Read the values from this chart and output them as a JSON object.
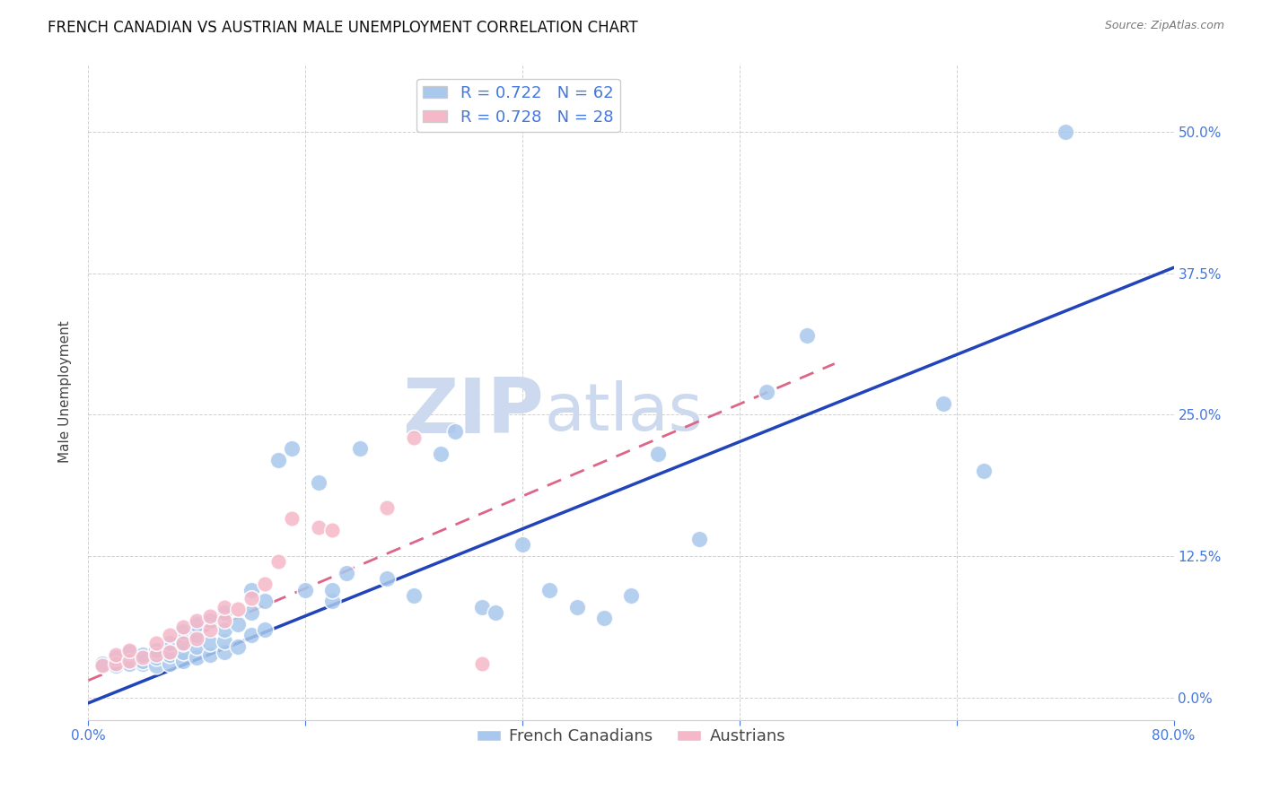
{
  "title": "FRENCH CANADIAN VS AUSTRIAN MALE UNEMPLOYMENT CORRELATION CHART",
  "source": "Source: ZipAtlas.com",
  "ylabel": "Male Unemployment",
  "xlim": [
    0.0,
    0.8
  ],
  "ylim": [
    -0.02,
    0.56
  ],
  "xticks": [
    0.0,
    0.16,
    0.32,
    0.48,
    0.64,
    0.8
  ],
  "yticks": [
    0.0,
    0.125,
    0.25,
    0.375,
    0.5
  ],
  "grid_color": "#cccccc",
  "background_color": "#ffffff",
  "french_color": "#a8c8ed",
  "austrian_color": "#f5b8c8",
  "french_line_color": "#2244bb",
  "austrian_line_color": "#dd6688",
  "french_R": "0.722",
  "french_N": "62",
  "austrian_R": "0.728",
  "austrian_N": "28",
  "french_scatter_x": [
    0.01,
    0.02,
    0.02,
    0.03,
    0.03,
    0.04,
    0.04,
    0.04,
    0.05,
    0.05,
    0.05,
    0.06,
    0.06,
    0.06,
    0.07,
    0.07,
    0.07,
    0.07,
    0.08,
    0.08,
    0.08,
    0.08,
    0.09,
    0.09,
    0.09,
    0.1,
    0.1,
    0.1,
    0.1,
    0.11,
    0.11,
    0.12,
    0.12,
    0.12,
    0.13,
    0.13,
    0.14,
    0.15,
    0.16,
    0.17,
    0.18,
    0.18,
    0.19,
    0.2,
    0.22,
    0.24,
    0.26,
    0.27,
    0.29,
    0.3,
    0.32,
    0.34,
    0.36,
    0.38,
    0.4,
    0.42,
    0.45,
    0.5,
    0.53,
    0.63,
    0.66,
    0.72
  ],
  "french_scatter_y": [
    0.03,
    0.028,
    0.035,
    0.03,
    0.04,
    0.03,
    0.032,
    0.038,
    0.028,
    0.035,
    0.042,
    0.03,
    0.038,
    0.048,
    0.032,
    0.04,
    0.048,
    0.058,
    0.035,
    0.045,
    0.055,
    0.065,
    0.038,
    0.048,
    0.068,
    0.04,
    0.05,
    0.06,
    0.075,
    0.045,
    0.065,
    0.055,
    0.075,
    0.095,
    0.06,
    0.085,
    0.21,
    0.22,
    0.095,
    0.19,
    0.085,
    0.095,
    0.11,
    0.22,
    0.105,
    0.09,
    0.215,
    0.235,
    0.08,
    0.075,
    0.135,
    0.095,
    0.08,
    0.07,
    0.09,
    0.215,
    0.14,
    0.27,
    0.32,
    0.26,
    0.2,
    0.5
  ],
  "austrian_scatter_x": [
    0.01,
    0.02,
    0.02,
    0.03,
    0.03,
    0.04,
    0.05,
    0.05,
    0.06,
    0.06,
    0.07,
    0.07,
    0.08,
    0.08,
    0.09,
    0.09,
    0.1,
    0.1,
    0.11,
    0.12,
    0.13,
    0.14,
    0.15,
    0.17,
    0.18,
    0.22,
    0.24,
    0.29
  ],
  "austrian_scatter_y": [
    0.028,
    0.03,
    0.038,
    0.032,
    0.042,
    0.035,
    0.038,
    0.048,
    0.04,
    0.055,
    0.048,
    0.062,
    0.052,
    0.068,
    0.06,
    0.072,
    0.068,
    0.08,
    0.078,
    0.088,
    0.1,
    0.12,
    0.158,
    0.15,
    0.148,
    0.168,
    0.23,
    0.03
  ],
  "french_line_x": [
    0.0,
    0.8
  ],
  "french_line_y": [
    -0.005,
    0.38
  ],
  "austrian_line_x": [
    0.0,
    0.55
  ],
  "austrian_line_y": [
    0.015,
    0.295
  ],
  "title_fontsize": 12,
  "axis_label_fontsize": 11,
  "tick_fontsize": 11,
  "legend_fontsize": 13,
  "watermark_fontsize": 62,
  "watermark_color": "#ccd9ee",
  "right_tick_color": "#4477dd",
  "legend_text_color": "#4477dd"
}
